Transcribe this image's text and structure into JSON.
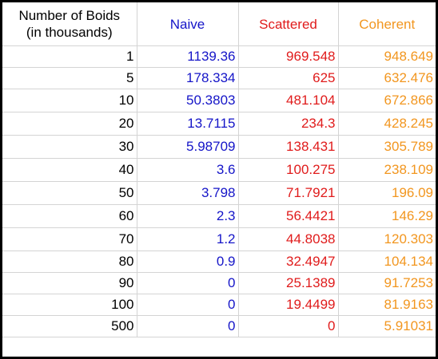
{
  "table": {
    "header": {
      "col0_line1": "Number of Boids",
      "col0_line2": "(in thousands)",
      "col1": "Naive",
      "col2": "Scattered",
      "col3": "Coherent"
    },
    "rows": [
      {
        "boids": "1",
        "naive": "1139.36",
        "scattered": "969.548",
        "coherent": "948.649"
      },
      {
        "boids": "5",
        "naive": "178.334",
        "scattered": "625",
        "coherent": "632.476"
      },
      {
        "boids": "10",
        "naive": "50.3803",
        "scattered": "481.104",
        "coherent": "672.866"
      },
      {
        "boids": "20",
        "naive": "13.7115",
        "scattered": "234.3",
        "coherent": "428.245"
      },
      {
        "boids": "30",
        "naive": "5.98709",
        "scattered": "138.431",
        "coherent": "305.789"
      },
      {
        "boids": "40",
        "naive": "3.6",
        "scattered": "100.275",
        "coherent": "238.109"
      },
      {
        "boids": "50",
        "naive": "3.798",
        "scattered": "71.7921",
        "coherent": "196.09"
      },
      {
        "boids": "60",
        "naive": "2.3",
        "scattered": "56.4421",
        "coherent": "146.29"
      },
      {
        "boids": "70",
        "naive": "1.2",
        "scattered": "44.8038",
        "coherent": "120.303"
      },
      {
        "boids": "80",
        "naive": "0.9",
        "scattered": "32.4947",
        "coherent": "104.134"
      },
      {
        "boids": "90",
        "naive": "0",
        "scattered": "25.1389",
        "coherent": "91.7253"
      },
      {
        "boids": "100",
        "naive": "0",
        "scattered": "19.4499",
        "coherent": "81.9163"
      },
      {
        "boids": "500",
        "naive": "0",
        "scattered": "0",
        "coherent": "5.91031"
      }
    ]
  },
  "colors": {
    "naive": "#1515c8",
    "scattered": "#e01b1b",
    "coherent": "#f2961f",
    "border": "#000000",
    "grid": "#d4d4d4"
  }
}
